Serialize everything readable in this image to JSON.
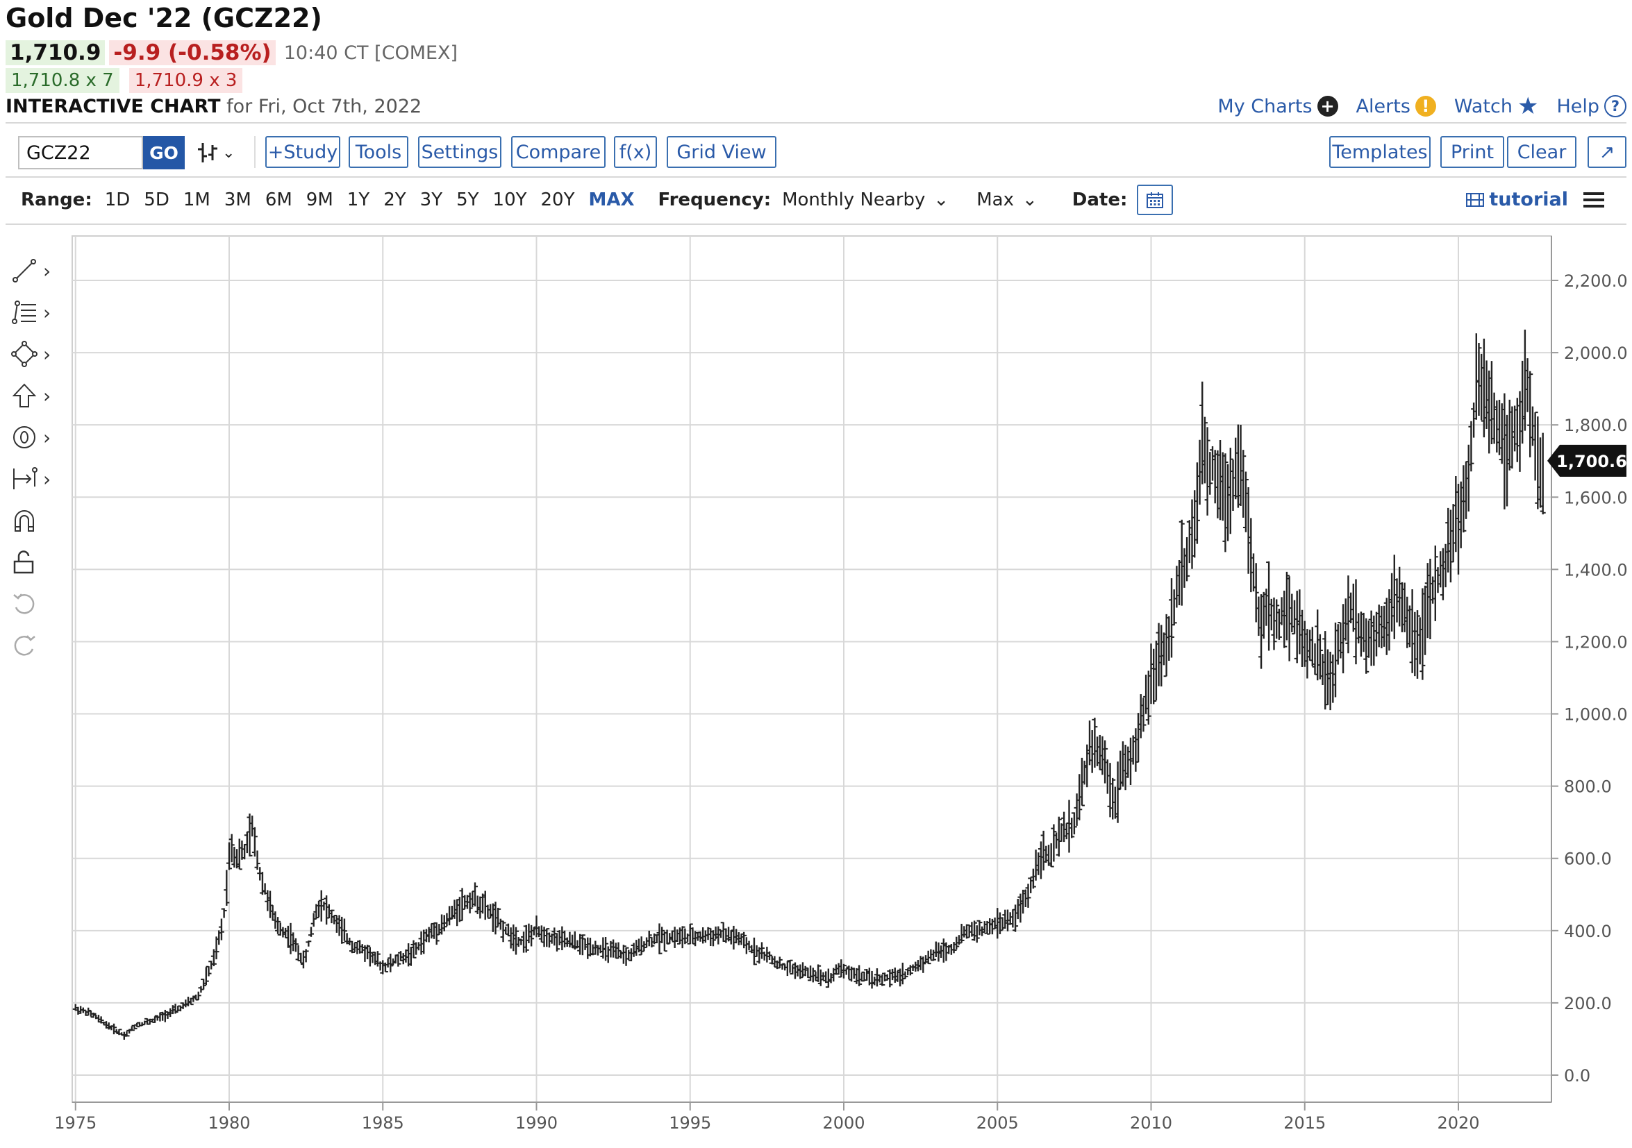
{
  "header": {
    "title": "Gold Dec '22 (GCZ22)",
    "last": "1,710.9",
    "change": "-9.9 (-0.58%)",
    "time": "10:40 CT [COMEX]",
    "bid": "1,710.8 x 7",
    "ask": "1,710.9 x 3",
    "chart_label": "INTERACTIVE CHART",
    "chart_for": "for Fri, Oct 7th, 2022"
  },
  "toplinks": {
    "my_charts": "My Charts",
    "alerts": "Alerts",
    "watch": "Watch",
    "help": "Help"
  },
  "toolbar": {
    "symbol": "GCZ22",
    "go": "GO",
    "study": "+Study",
    "tools": "Tools",
    "settings": "Settings",
    "compare": "Compare",
    "fx": "f(x)",
    "grid_view": "Grid View",
    "templates": "Templates",
    "print": "Print",
    "clear": "Clear",
    "expand": "↗"
  },
  "rangebar": {
    "range_label": "Range:",
    "ranges": [
      "1D",
      "5D",
      "1M",
      "3M",
      "6M",
      "9M",
      "1Y",
      "2Y",
      "3Y",
      "5Y",
      "10Y",
      "20Y",
      "MAX"
    ],
    "active_range": "MAX",
    "frequency_label": "Frequency:",
    "frequency": "Monthly Nearby",
    "max_select": "Max",
    "date_label": "Date:",
    "tutorial": "tutorial"
  },
  "icons": {
    "chart_type": "ohlc-bar-icon",
    "calendar": "calendar-icon",
    "tutorial": "film-icon",
    "menu": "hamburger-icon",
    "drawing_tools": [
      "line-tool-icon",
      "fib-tool-icon",
      "shape-tool-icon",
      "arrow-tool-icon",
      "number-tool-icon",
      "measure-tool-icon",
      "magnet-icon",
      "lock-icon",
      "undo-icon",
      "redo-icon"
    ]
  },
  "colors": {
    "link": "#2a5aa8",
    "up_bg": "#e4f3df",
    "down": "#b81f1f",
    "down_bg": "#fbe3e3",
    "bars": "#222222"
  },
  "chart_data": {
    "type": "ohlc-bar",
    "frequency": "Monthly",
    "current_price_label": "1,700.6",
    "x_tick_labels": [
      "1975",
      "1980",
      "1985",
      "1990",
      "1995",
      "2000",
      "2005",
      "2010",
      "2015",
      "2020"
    ],
    "y_tick_labels": [
      "0.0",
      "200.0",
      "400.0",
      "600.0",
      "800.0",
      "1,000.0",
      "1,200.0",
      "1,400.0",
      "1,600.0",
      "1,800.0",
      "2,000.0",
      "2,200.0"
    ],
    "ylim": [
      0,
      2300
    ],
    "xlim": [
      1975,
      2023
    ],
    "grid": true,
    "series": [
      {
        "x": [
          1975.0,
          1975.5,
          1976.0,
          1976.6,
          1977.0,
          1977.5,
          1978.0,
          1978.5,
          1979.0,
          1979.5,
          1979.8,
          1980.05,
          1980.2,
          1980.5,
          1980.75,
          1981.0,
          1981.5,
          1982.0,
          1982.45,
          1982.8,
          1983.0,
          1983.5,
          1984.0,
          1984.5,
          1985.0,
          1985.5,
          1986.0,
          1986.5,
          1987.0,
          1987.5,
          1987.95,
          1988.5,
          1989.0,
          1989.5,
          1990.0,
          1990.5,
          1991.0,
          1991.5,
          1992.0,
          1992.5,
          1993.0,
          1993.6,
          1994.0,
          1994.5,
          1995.0,
          1995.5,
          1996.0,
          1996.5,
          1997.0,
          1997.5,
          1998.0,
          1998.5,
          1999.0,
          1999.6,
          1999.85,
          2000.0,
          2000.5,
          2001.0,
          2001.5,
          2002.0,
          2002.5,
          2003.0,
          2003.5,
          2004.0,
          2004.5,
          2005.0,
          2005.5,
          2006.0,
          2006.4,
          2006.7,
          2007.0,
          2007.5,
          2008.0,
          2008.2,
          2008.5,
          2008.85,
          2009.0,
          2009.5,
          2010.0,
          2010.5,
          2011.0,
          2011.4,
          2011.7,
          2011.9,
          2012.0,
          2012.5,
          2012.8,
          2013.0,
          2013.3,
          2013.5,
          2013.8,
          2014.0,
          2014.5,
          2015.0,
          2015.5,
          2015.9,
          2016.0,
          2016.5,
          2017.0,
          2017.5,
          2018.0,
          2018.5,
          2018.8,
          2019.0,
          2019.5,
          2020.0,
          2020.25,
          2020.6,
          2020.9,
          2021.0,
          2021.25,
          2021.5,
          2022.0,
          2022.2,
          2022.5,
          2022.75
        ],
        "values": [
          185,
          170,
          140,
          110,
          140,
          150,
          170,
          190,
          220,
          320,
          420,
          650,
          600,
          620,
          680,
          560,
          420,
          380,
          310,
          450,
          480,
          420,
          360,
          340,
          300,
          320,
          340,
          390,
          420,
          470,
          490,
          450,
          400,
          370,
          400,
          380,
          370,
          360,
          350,
          340,
          330,
          370,
          380,
          385,
          380,
          385,
          390,
          380,
          350,
          330,
          300,
          290,
          280,
          270,
          300,
          290,
          275,
          265,
          270,
          280,
          310,
          340,
          350,
          400,
          400,
          420,
          430,
          500,
          620,
          600,
          660,
          700,
          900,
          920,
          850,
          750,
          850,
          900,
          1100,
          1200,
          1400,
          1500,
          1750,
          1650,
          1700,
          1600,
          1700,
          1650,
          1400,
          1250,
          1300,
          1250,
          1300,
          1200,
          1150,
          1080,
          1150,
          1300,
          1200,
          1250,
          1320,
          1230,
          1200,
          1300,
          1400,
          1550,
          1600,
          1900,
          1900,
          1850,
          1800,
          1750,
          1800,
          1900,
          1750,
          1660
        ]
      }
    ]
  }
}
